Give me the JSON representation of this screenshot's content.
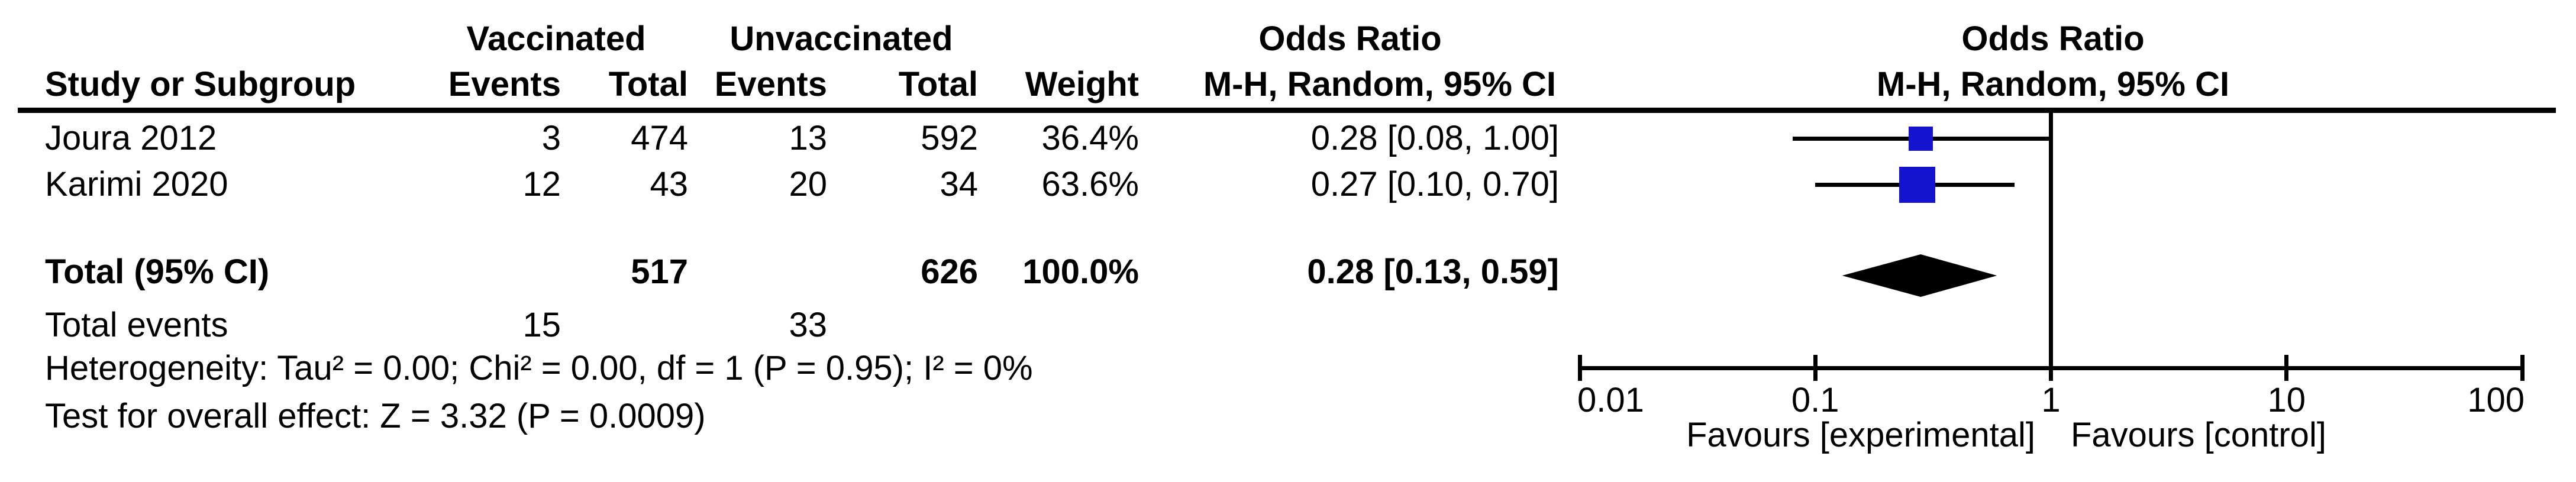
{
  "table": {
    "group_headers": {
      "vaccinated": "Vaccinated",
      "unvaccinated": "Unvaccinated",
      "odds_ratio_left": "Odds Ratio",
      "odds_ratio_right": "Odds Ratio"
    },
    "column_headers": {
      "study": "Study or Subgroup",
      "events_vacc": "Events",
      "total_vacc": "Total",
      "events_unvacc": "Events",
      "total_unvacc": "Total",
      "weight": "Weight",
      "mh_ci_left": "M-H, Random, 95% CI",
      "mh_ci_right": "M-H, Random, 95% CI"
    },
    "rows": [
      {
        "study": "Joura 2012",
        "events_vacc": "3",
        "total_vacc": "474",
        "events_unvacc": "13",
        "total_unvacc": "592",
        "weight": "36.4%",
        "or_ci": "0.28 [0.08, 1.00]"
      },
      {
        "study": "Karimi 2020",
        "events_vacc": "12",
        "total_vacc": "43",
        "events_unvacc": "20",
        "total_unvacc": "34",
        "weight": "63.6%",
        "or_ci": "0.27 [0.10, 0.70]"
      }
    ],
    "total_row": {
      "label": "Total (95% CI)",
      "total_vacc": "517",
      "total_unvacc": "626",
      "weight": "100.0%",
      "or_ci": "0.28 [0.13, 0.59]"
    },
    "total_events": {
      "label": "Total events",
      "vacc": "15",
      "unvacc": "33"
    },
    "heterogeneity": "Heterogeneity: Tau² = 0.00; Chi² = 0.00, df = 1 (P = 0.95); I² = 0%",
    "overall_effect": "Test for overall effect: Z = 3.32 (P = 0.0009)"
  },
  "chart_data": {
    "type": "forest",
    "x_scale": "log10",
    "axis_ticks": [
      0.01,
      0.1,
      1,
      10,
      100
    ],
    "axis_tick_labels": [
      "0.01",
      "0.1",
      "1",
      "10",
      "100"
    ],
    "axis_range": [
      0.01,
      100
    ],
    "null_line_value": 1,
    "studies": [
      {
        "name": "Joura 2012",
        "or": 0.28,
        "ci_low": 0.08,
        "ci_high": 1.0,
        "weight_pct": 36.4
      },
      {
        "name": "Karimi 2020",
        "or": 0.27,
        "ci_low": 0.1,
        "ci_high": 0.7,
        "weight_pct": 63.6
      }
    ],
    "total": {
      "or": 0.28,
      "ci_low": 0.13,
      "ci_high": 0.59
    },
    "xlabel_left": "Favours [experimental]",
    "xlabel_right": "Favours [control]",
    "marker_color": "#1414CE",
    "line_color": "#000000",
    "diamond_color": "#000000"
  }
}
